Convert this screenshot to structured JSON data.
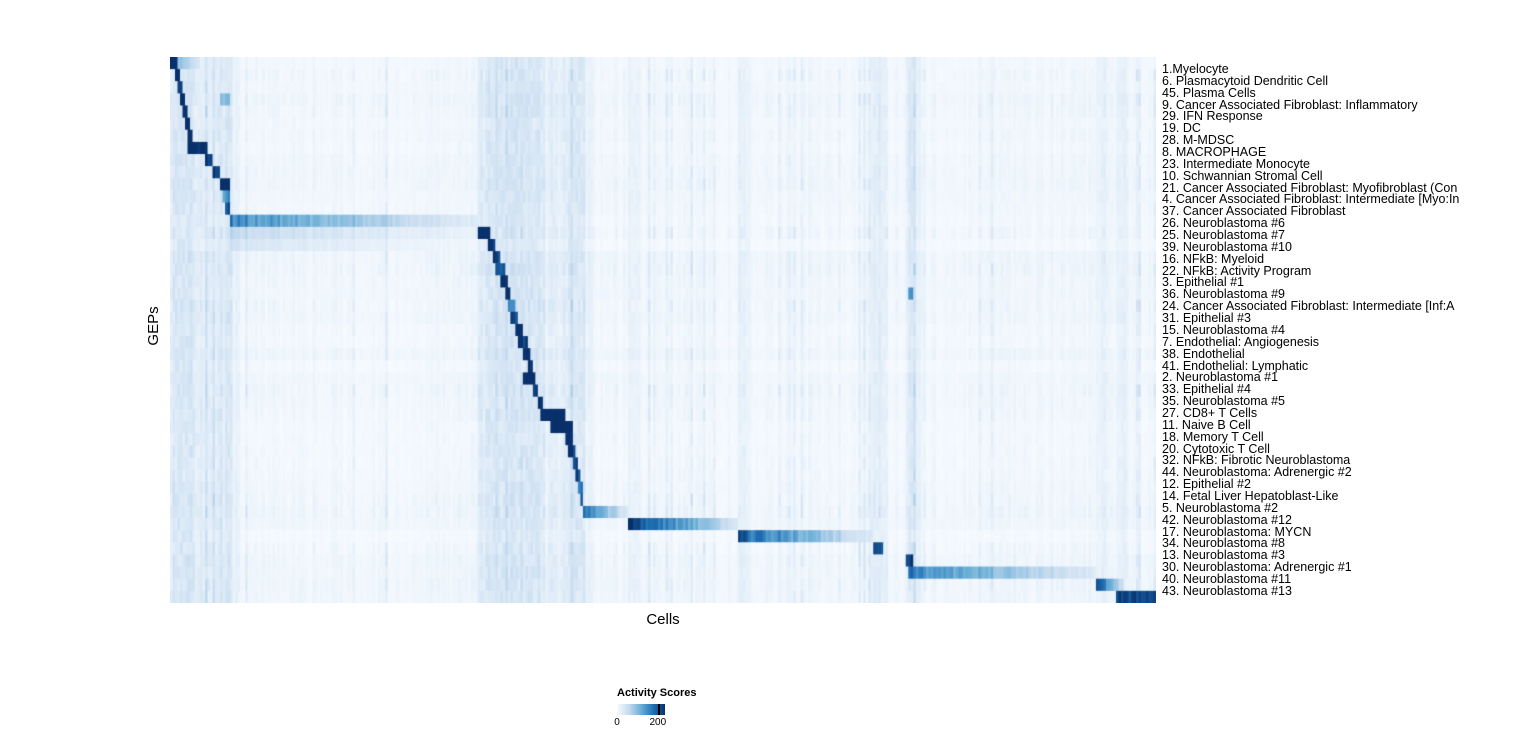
{
  "chart_data": {
    "type": "heatmap",
    "title": "",
    "xlabel": "Cells",
    "ylabel": "GEPs",
    "value_range": [
      0,
      200
    ],
    "legend": {
      "title": "Activity Scores",
      "tick_labels": [
        "0",
        "200"
      ]
    },
    "colormap": {
      "name": "Blues",
      "stops": [
        "#f7fbff",
        "#c6dbef",
        "#6baed6",
        "#2171b5",
        "#08306b"
      ]
    },
    "rows": [
      {
        "label": "1.Myelocyte",
        "segments": [
          [
            0.0,
            0.007,
            0.95,
            0
          ],
          [
            0.007,
            0.03,
            0.25,
            1
          ]
        ]
      },
      {
        "label": "6. Plasmacytoid Dendritic Cell",
        "segments": [
          [
            0.004,
            0.01,
            0.9,
            0
          ]
        ]
      },
      {
        "label": "45. Plasma Cells",
        "segments": [
          [
            0.007,
            0.013,
            0.85,
            0
          ]
        ]
      },
      {
        "label": "9. Cancer Associated Fibroblast: Inflammatory",
        "segments": [
          [
            0.01,
            0.016,
            0.88,
            0
          ],
          [
            0.05,
            0.062,
            0.3,
            0
          ]
        ]
      },
      {
        "label": "29. IFN Response",
        "segments": [
          [
            0.012,
            0.019,
            0.85,
            0
          ]
        ]
      },
      {
        "label": "19. DC",
        "segments": [
          [
            0.015,
            0.021,
            0.9,
            0
          ]
        ]
      },
      {
        "label": "28. M-MDSC",
        "segments": [
          [
            0.017,
            0.024,
            0.85,
            0
          ]
        ]
      },
      {
        "label": "8. MACROPHAGE",
        "segments": [
          [
            0.018,
            0.037,
            0.95,
            0
          ]
        ]
      },
      {
        "label": "23. Intermediate Monocyte",
        "segments": [
          [
            0.036,
            0.044,
            0.8,
            0
          ]
        ]
      },
      {
        "label": "10. Schwannian Stromal Cell",
        "segments": [
          [
            0.044,
            0.052,
            0.85,
            0
          ]
        ]
      },
      {
        "label": "21. Cancer Associated Fibroblast: Myofibroblast (Con",
        "segments": [
          [
            0.05,
            0.06,
            0.85,
            0
          ]
        ]
      },
      {
        "label": "4. Cancer Associated Fibroblast: Intermediate [Myo:In",
        "segments": [
          [
            0.053,
            0.061,
            0.45,
            0
          ]
        ]
      },
      {
        "label": "37. Cancer Associated Fibroblast",
        "segments": [
          [
            0.056,
            0.062,
            0.7,
            0
          ]
        ]
      },
      {
        "label": "26. Neuroblastoma #6",
        "segments": [
          [
            0.06,
            0.313,
            0.62,
            1
          ]
        ]
      },
      {
        "label": "25. Neuroblastoma #7",
        "segments": [
          [
            0.062,
            0.313,
            0.2,
            1
          ],
          [
            0.313,
            0.325,
            0.95,
            0
          ]
        ]
      },
      {
        "label": "39. Neuroblastoma #10",
        "segments": [
          [
            0.062,
            0.313,
            0.14,
            1
          ],
          [
            0.322,
            0.331,
            0.85,
            0
          ]
        ]
      },
      {
        "label": "16. NFkB: Myeloid",
        "segments": [
          [
            0.328,
            0.336,
            0.8,
            0
          ]
        ]
      },
      {
        "label": "22. NFkB: Activity Program",
        "segments": [
          [
            0.331,
            0.339,
            0.65,
            0
          ]
        ]
      },
      {
        "label": "3. Epithelial #1",
        "segments": [
          [
            0.335,
            0.343,
            0.9,
            0
          ]
        ]
      },
      {
        "label": "36. Neuroblastoma #9",
        "segments": [
          [
            0.34,
            0.346,
            0.8,
            0
          ],
          [
            0.748,
            0.753,
            0.45,
            0
          ]
        ]
      },
      {
        "label": "24. Cancer Associated Fibroblast: Intermediate [Inf:A",
        "segments": [
          [
            0.342,
            0.349,
            0.5,
            0
          ]
        ]
      },
      {
        "label": "31. Epithelial #3",
        "segments": [
          [
            0.345,
            0.352,
            0.7,
            0
          ]
        ]
      },
      {
        "label": "15. Neuroblastoma #4",
        "segments": [
          [
            0.35,
            0.358,
            0.9,
            0
          ]
        ]
      },
      {
        "label": "7. Endothelial: Angiogenesis",
        "segments": [
          [
            0.354,
            0.362,
            0.85,
            0
          ]
        ]
      },
      {
        "label": "38. Endothelial",
        "segments": [
          [
            0.358,
            0.366,
            0.9,
            0
          ]
        ]
      },
      {
        "label": "41. Endothelial: Lymphatic",
        "segments": [
          [
            0.362,
            0.368,
            0.8,
            0
          ]
        ]
      },
      {
        "label": "2. Neuroblastoma #1",
        "segments": [
          [
            0.359,
            0.371,
            0.97,
            0
          ]
        ]
      },
      {
        "label": "33. Epithelial #4",
        "segments": [
          [
            0.368,
            0.374,
            0.75,
            0
          ]
        ]
      },
      {
        "label": "35. Neuroblastoma #5",
        "segments": [
          [
            0.372,
            0.379,
            0.85,
            0
          ]
        ]
      },
      {
        "label": "27. CD8+ T Cells",
        "segments": [
          [
            0.376,
            0.402,
            1.0,
            0
          ]
        ]
      },
      {
        "label": "11. Naive B Cell",
        "segments": [
          [
            0.386,
            0.409,
            0.95,
            0
          ]
        ]
      },
      {
        "label": "18. Memory T Cell",
        "segments": [
          [
            0.4,
            0.409,
            0.9,
            0
          ]
        ]
      },
      {
        "label": "20. Cytotoxic T Cell",
        "segments": [
          [
            0.404,
            0.412,
            0.85,
            0
          ]
        ]
      },
      {
        "label": "32. NFkB: Fibrotic Neuroblastoma",
        "segments": [
          [
            0.408,
            0.414,
            0.7,
            0
          ]
        ]
      },
      {
        "label": "44. Neuroblastoma: Adrenergic #2",
        "segments": [
          [
            0.411,
            0.417,
            0.75,
            0
          ]
        ]
      },
      {
        "label": "12. Epithelial #2",
        "segments": [
          [
            0.413,
            0.418,
            0.6,
            0
          ]
        ]
      },
      {
        "label": "14. Fetal Liver Hepatoblast-Like",
        "segments": [
          [
            0.415,
            0.42,
            0.8,
            0
          ]
        ]
      },
      {
        "label": "5. Neuroblastoma #2",
        "segments": [
          [
            0.418,
            0.465,
            0.65,
            1
          ]
        ]
      },
      {
        "label": "42. Neuroblastoma #12",
        "segments": [
          [
            0.465,
            0.576,
            0.92,
            1
          ]
        ]
      },
      {
        "label": "17. Neuroblastoma: MYCN",
        "segments": [
          [
            0.577,
            0.712,
            0.78,
            1
          ]
        ]
      },
      {
        "label": "34. Neuroblastoma #8",
        "segments": [
          [
            0.713,
            0.724,
            0.8,
            0
          ]
        ]
      },
      {
        "label": "13. Neuroblastoma #3",
        "segments": [
          [
            0.747,
            0.755,
            0.8,
            0
          ]
        ]
      },
      {
        "label": "30. Neuroblastoma: Adrenergic #1",
        "segments": [
          [
            0.75,
            0.94,
            0.62,
            1
          ]
        ]
      },
      {
        "label": "40. Neuroblastoma #11",
        "segments": [
          [
            0.94,
            0.968,
            0.75,
            1
          ]
        ]
      },
      {
        "label": "43. Neuroblastoma #13",
        "segments": [
          [
            0.96,
            1.0,
            0.85,
            0
          ]
        ]
      }
    ]
  }
}
